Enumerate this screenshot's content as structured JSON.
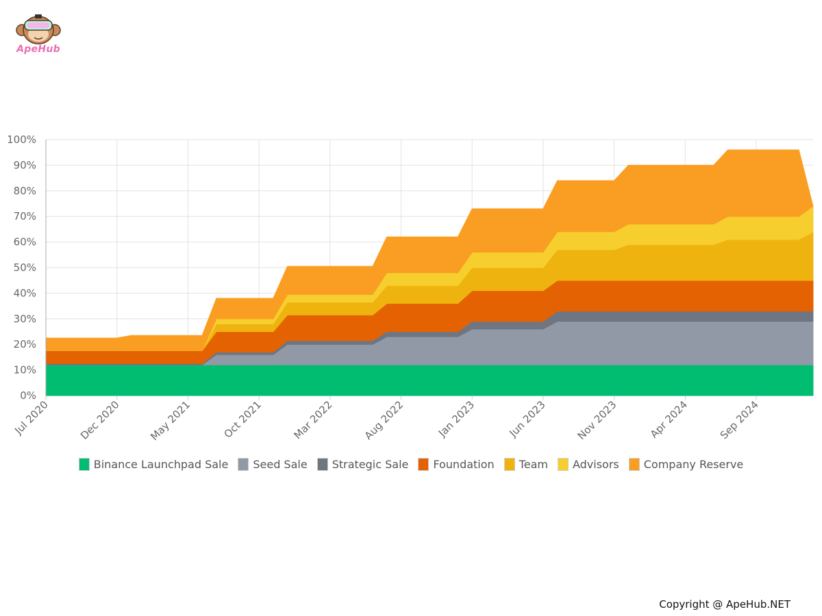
{
  "brand": {
    "logo_text": "ApeHub"
  },
  "footer": {
    "copyright": "Copyright @ ApeHub.NET"
  },
  "chart_data": {
    "type": "area",
    "stacked": true,
    "y_axis": {
      "min": 0,
      "max": 100,
      "step": 10,
      "suffix": "%"
    },
    "x_tick_labels": [
      "Jul 2020",
      "Dec 2020",
      "May 2021",
      "Oct 2021",
      "Mar 2022",
      "Aug 2022",
      "Jan 2023",
      "Jun 2023",
      "Nov 2023",
      "Apr 2024",
      "Sep 2024"
    ],
    "x_tick_month_index": [
      0,
      5,
      10,
      15,
      20,
      25,
      30,
      35,
      40,
      45,
      50
    ],
    "x_last_month_index": 54,
    "legend_position": "bottom",
    "grid": true,
    "series": [
      {
        "name": "Binance Launchpad Sale",
        "color": "#00bd72",
        "points": [
          [
            0,
            12
          ],
          [
            54,
            12
          ]
        ]
      },
      {
        "name": "Seed Sale",
        "color": "#9099a5",
        "points": [
          [
            0,
            0
          ],
          [
            11,
            0
          ],
          [
            12,
            4
          ],
          [
            16,
            4
          ],
          [
            17,
            8
          ],
          [
            23,
            8
          ],
          [
            24,
            11
          ],
          [
            29,
            11
          ],
          [
            30,
            14
          ],
          [
            35,
            14
          ],
          [
            36,
            17
          ],
          [
            54,
            17
          ]
        ]
      },
      {
        "name": "Strategic Sale",
        "color": "#6f7682",
        "points": [
          [
            0,
            0.5
          ],
          [
            11,
            0.5
          ],
          [
            12,
            1
          ],
          [
            16,
            1
          ],
          [
            17,
            1.5
          ],
          [
            23,
            1.5
          ],
          [
            24,
            2
          ],
          [
            29,
            2
          ],
          [
            30,
            3
          ],
          [
            35,
            3
          ],
          [
            36,
            4
          ],
          [
            54,
            4
          ]
        ]
      },
      {
        "name": "Foundation",
        "color": "#e46202",
        "points": [
          [
            0,
            5
          ],
          [
            11,
            5
          ],
          [
            12,
            8
          ],
          [
            16,
            8
          ],
          [
            17,
            10
          ],
          [
            23,
            10
          ],
          [
            24,
            11
          ],
          [
            29,
            11
          ],
          [
            30,
            12
          ],
          [
            35,
            12
          ],
          [
            36,
            12
          ],
          [
            54,
            12
          ]
        ]
      },
      {
        "name": "Team",
        "color": "#efb30f",
        "points": [
          [
            0,
            0
          ],
          [
            11,
            0
          ],
          [
            12,
            3
          ],
          [
            16,
            3
          ],
          [
            17,
            5
          ],
          [
            23,
            5
          ],
          [
            24,
            7
          ],
          [
            29,
            7
          ],
          [
            30,
            9
          ],
          [
            35,
            9
          ],
          [
            36,
            12
          ],
          [
            40,
            12
          ],
          [
            41,
            14
          ],
          [
            47,
            14
          ],
          [
            48,
            16
          ],
          [
            53,
            16
          ],
          [
            54,
            19
          ]
        ]
      },
      {
        "name": "Advisors",
        "color": "#f6cf2e",
        "points": [
          [
            0,
            0
          ],
          [
            11,
            0
          ],
          [
            12,
            2
          ],
          [
            16,
            2
          ],
          [
            17,
            3
          ],
          [
            23,
            3
          ],
          [
            24,
            5
          ],
          [
            29,
            5
          ],
          [
            30,
            6
          ],
          [
            35,
            6
          ],
          [
            36,
            7
          ],
          [
            40,
            7
          ],
          [
            41,
            8
          ],
          [
            47,
            8
          ],
          [
            48,
            9
          ],
          [
            53,
            9
          ],
          [
            54,
            10
          ]
        ]
      },
      {
        "name": "Company Reserve",
        "color": "#fa9e23",
        "points": [
          [
            0,
            5
          ],
          [
            5,
            5
          ],
          [
            6,
            6
          ],
          [
            10,
            6
          ],
          [
            11,
            6
          ],
          [
            12,
            8
          ],
          [
            16,
            8
          ],
          [
            17,
            11
          ],
          [
            23,
            11
          ],
          [
            24,
            14
          ],
          [
            29,
            14
          ],
          [
            30,
            17
          ],
          [
            35,
            17
          ],
          [
            36,
            20
          ],
          [
            40,
            20
          ],
          [
            41,
            23
          ],
          [
            47,
            23
          ],
          [
            48,
            26
          ],
          [
            53,
            26
          ]
        ]
      }
    ]
  }
}
